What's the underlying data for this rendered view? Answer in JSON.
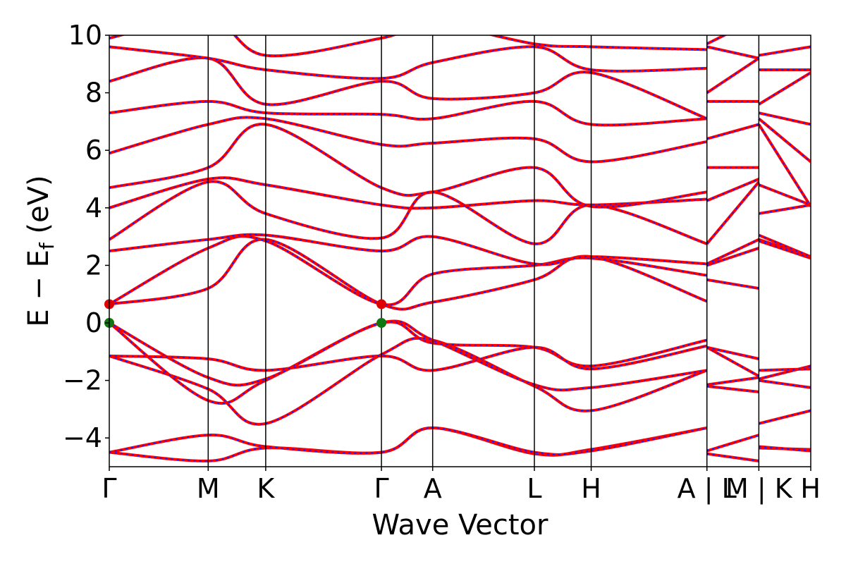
{
  "chart_data": {
    "type": "line",
    "xlabel": "Wave Vector",
    "ylabel": "E − E_f (eV)",
    "ylabel_main": "E − E",
    "ylabel_sub": "f",
    "ylabel_unit": " (eV)",
    "ylim": [
      -5,
      10
    ],
    "yticks": [
      -4,
      -2,
      0,
      2,
      4,
      6,
      8,
      10
    ],
    "ytick_labels": [
      "−4",
      "−2",
      "0",
      "2",
      "4",
      "6",
      "8",
      "10"
    ],
    "grid": false,
    "legend": "none",
    "kpath": [
      {
        "label": "Γ",
        "pos": 0.0
      },
      {
        "label": "M",
        "pos": 0.141
      },
      {
        "label": "K",
        "pos": 0.223
      },
      {
        "label": "Γ",
        "pos": 0.388
      },
      {
        "label": "A",
        "pos": 0.461
      },
      {
        "label": "L",
        "pos": 0.606
      },
      {
        "label": "H",
        "pos": 0.687
      },
      {
        "label": "A | L",
        "pos": 0.852
      },
      {
        "label": "M | K",
        "pos": 0.926
      },
      {
        "label": "H",
        "pos": 1.0
      }
    ],
    "x_range": [
      0,
      1
    ],
    "segment_breaks": [
      0.852,
      0.926
    ],
    "markers": [
      {
        "name": "CBM",
        "x": 0.0,
        "y": 0.65,
        "color": "#e00000"
      },
      {
        "name": "CBM",
        "x": 0.388,
        "y": 0.65,
        "color": "#e00000"
      },
      {
        "name": "VBM",
        "x": 0.0,
        "y": 0.0,
        "color": "#117711"
      },
      {
        "name": "VBM",
        "x": 0.388,
        "y": 0.0,
        "color": "#117711"
      }
    ],
    "series_style": {
      "primary_color": "#ff0000",
      "overlay_color": "#1a1aff"
    },
    "bands": [
      {
        "name": "band-1",
        "x": [
          0,
          0.141,
          0.223,
          0.388,
          0.461,
          0.606,
          0.687,
          0.852,
          0.852,
          0.926,
          0.926,
          1.0
        ],
        "y": [
          -4.5,
          -4.8,
          -4.35,
          -4.5,
          -3.65,
          -4.55,
          -4.4,
          -3.65,
          -4.55,
          -4.8,
          -4.35,
          -4.4
        ]
      },
      {
        "name": "band-2",
        "x": [
          0,
          0.141,
          0.223,
          0.388,
          0.461,
          0.606,
          0.687,
          0.852,
          0.852,
          0.926,
          0.926,
          1.0
        ],
        "y": [
          -4.5,
          -3.9,
          -4.3,
          -4.5,
          -3.65,
          -4.5,
          -4.45,
          -3.65,
          -4.45,
          -3.9,
          -4.3,
          -4.45
        ]
      },
      {
        "name": "band-3",
        "x": [
          0,
          0.141,
          0.223,
          0.388,
          0.461,
          0.606,
          0.687,
          0.852,
          0.852,
          0.926,
          0.926,
          1.0
        ],
        "y": [
          -1.15,
          -2.3,
          -3.5,
          -1.1,
          -0.6,
          -2.2,
          -3.05,
          -1.65,
          -2.2,
          -2.4,
          -3.5,
          -3.05
        ]
      },
      {
        "name": "band-4",
        "x": [
          0,
          0.141,
          0.223,
          0.388,
          0.461,
          0.606,
          0.687,
          0.852,
          0.852,
          0.926,
          0.926,
          1.0
        ],
        "y": [
          0,
          -2.7,
          -2.0,
          0,
          -0.6,
          -2.15,
          -2.25,
          -1.65,
          -2.15,
          -1.9,
          -2.0,
          -2.25
        ]
      },
      {
        "name": "band-5",
        "x": [
          0,
          0.141,
          0.223,
          0.388,
          0.461,
          0.606,
          0.687,
          0.852,
          0.852,
          0.926,
          0.926,
          1.0
        ],
        "y": [
          0,
          -1.9,
          -1.95,
          0,
          -0.7,
          -0.85,
          -1.5,
          -0.6,
          -0.85,
          -1.85,
          -1.95,
          -1.5
        ]
      },
      {
        "name": "band-6",
        "x": [
          0,
          0.141,
          0.223,
          0.388,
          0.461,
          0.606,
          0.687,
          0.852,
          0.852,
          0.926,
          0.926,
          1.0
        ],
        "y": [
          -1.15,
          -1.25,
          -1.65,
          -1.15,
          -1.65,
          -0.85,
          -1.6,
          -0.8,
          -0.85,
          -1.25,
          -1.65,
          -1.6
        ]
      },
      {
        "name": "band-7",
        "x": [
          0,
          0.141,
          0.223,
          0.388,
          0.461,
          0.606,
          0.687,
          0.852,
          0.852,
          0.926,
          0.926,
          1.0
        ],
        "y": [
          0.65,
          1.2,
          2.9,
          0.65,
          0.72,
          1.5,
          2.3,
          0.75,
          1.5,
          1.2,
          2.9,
          2.3
        ]
      },
      {
        "name": "band-8",
        "x": [
          0,
          0.141,
          0.223,
          0.388,
          0.461,
          0.606,
          0.687,
          0.852,
          0.852,
          0.926,
          0.926,
          1.0
        ],
        "y": [
          0.65,
          2.6,
          2.85,
          0.65,
          1.7,
          2.0,
          2.25,
          1.65,
          2.0,
          2.6,
          2.85,
          2.25
        ]
      },
      {
        "name": "band-9",
        "x": [
          0,
          0.141,
          0.223,
          0.388,
          0.461,
          0.606,
          0.687,
          0.852,
          0.852,
          0.926,
          0.926,
          1.0
        ],
        "y": [
          2.5,
          2.9,
          3.05,
          2.5,
          3.0,
          2.05,
          2.3,
          2.05,
          2.05,
          2.9,
          3.05,
          2.3
        ]
      },
      {
        "name": "band-10",
        "x": [
          0,
          0.141,
          0.223,
          0.388,
          0.461,
          0.606,
          0.687,
          0.852,
          0.852,
          0.926,
          0.926,
          1.0
        ],
        "y": [
          2.9,
          4.9,
          3.8,
          2.95,
          4.55,
          2.75,
          4.1,
          2.75,
          2.75,
          4.9,
          3.8,
          4.1
        ]
      },
      {
        "name": "band-11",
        "x": [
          0,
          0.141,
          0.223,
          0.388,
          0.461,
          0.606,
          0.687,
          0.852,
          0.852,
          0.926,
          0.926,
          1.0
        ],
        "y": [
          4.0,
          5.0,
          4.8,
          4.1,
          4.0,
          4.25,
          4.1,
          4.3,
          4.25,
          5.0,
          4.8,
          4.1
        ]
      },
      {
        "name": "band-12",
        "x": [
          0,
          0.141,
          0.223,
          0.388,
          0.461,
          0.606,
          0.687,
          0.852,
          0.852,
          0.926,
          0.926,
          1.0
        ],
        "y": [
          4.7,
          5.4,
          6.9,
          4.7,
          4.55,
          5.4,
          4.05,
          4.55,
          5.4,
          5.4,
          6.9,
          4.05
        ]
      },
      {
        "name": "band-13",
        "x": [
          0,
          0.141,
          0.223,
          0.388,
          0.461,
          0.606,
          0.687,
          0.852,
          0.852,
          0.926,
          0.926,
          1.0
        ],
        "y": [
          5.9,
          6.9,
          7.1,
          6.2,
          6.25,
          6.4,
          5.6,
          6.3,
          6.4,
          6.9,
          7.1,
          5.6
        ]
      },
      {
        "name": "band-14",
        "x": [
          0,
          0.141,
          0.223,
          0.388,
          0.461,
          0.606,
          0.687,
          0.852,
          0.852,
          0.926,
          0.926,
          1.0
        ],
        "y": [
          7.3,
          7.7,
          7.3,
          7.25,
          7.1,
          7.7,
          6.9,
          7.1,
          7.7,
          7.7,
          7.3,
          6.9
        ]
      },
      {
        "name": "band-15",
        "x": [
          0,
          0.141,
          0.223,
          0.388,
          0.461,
          0.606,
          0.687,
          0.852,
          0.852,
          0.926,
          0.926,
          1.0
        ],
        "y": [
          8.4,
          9.2,
          7.6,
          8.4,
          7.8,
          8.0,
          8.7,
          7.1,
          8.0,
          9.2,
          7.6,
          8.7
        ]
      },
      {
        "name": "band-16",
        "x": [
          0,
          0.141,
          0.223,
          0.388,
          0.461,
          0.606,
          0.687,
          0.852,
          0.852,
          0.926,
          0.926,
          1.0
        ],
        "y": [
          9.6,
          9.2,
          8.8,
          8.5,
          9.05,
          9.6,
          8.8,
          8.85,
          9.6,
          9.2,
          8.8,
          8.8
        ]
      },
      {
        "name": "band-17",
        "x": [
          0,
          0.141,
          0.223,
          0.388,
          0.461,
          0.606,
          0.687,
          0.852,
          0.852,
          0.926,
          0.926,
          1.0
        ],
        "y": [
          9.9,
          10.6,
          9.3,
          9.9,
          10.4,
          9.7,
          9.6,
          9.5,
          9.7,
          10.6,
          9.3,
          9.6
        ]
      }
    ]
  }
}
